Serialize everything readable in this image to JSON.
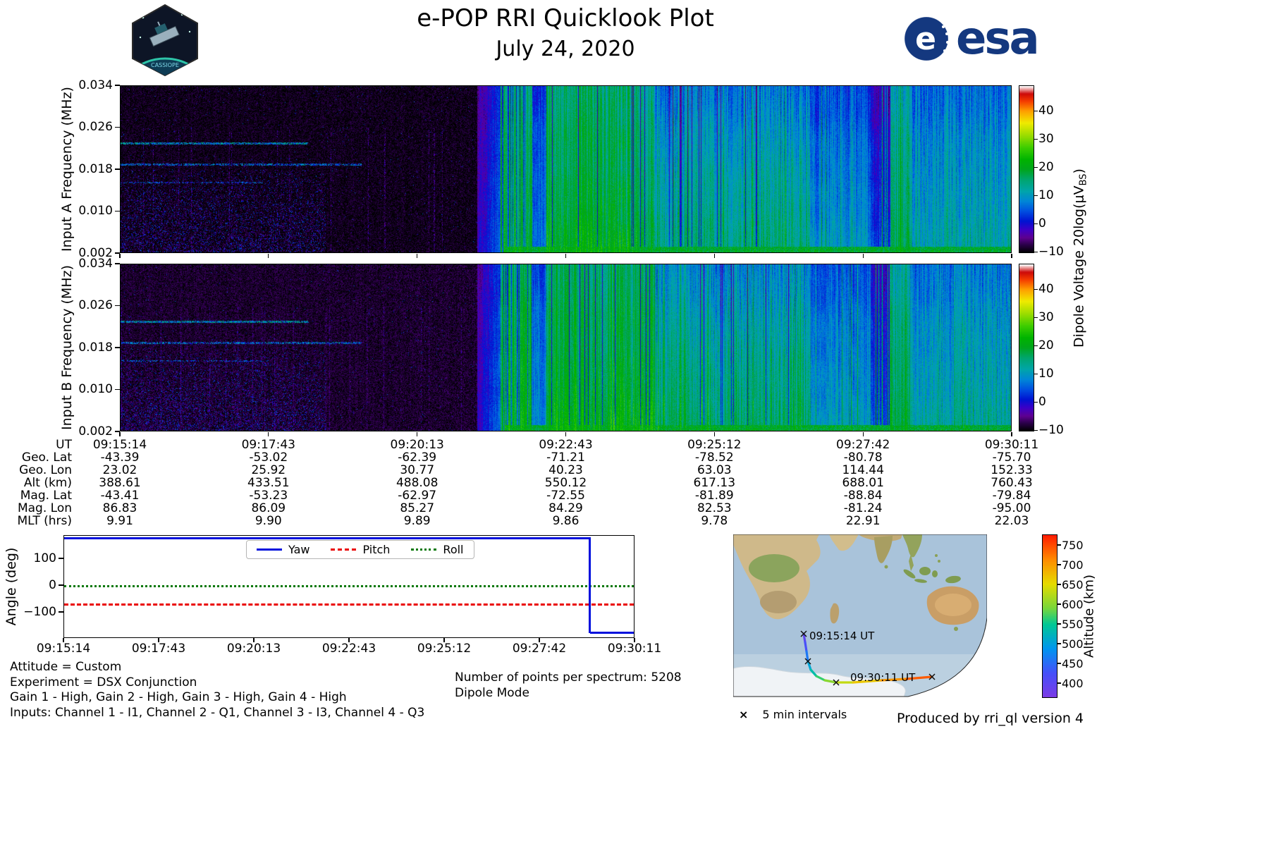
{
  "header": {
    "title": "e-POP RRI Quicklook Plot",
    "date": "July 24, 2020",
    "esa_wordmark": "esa",
    "mission_patch": "CASSIOPE"
  },
  "colors": {
    "yaw": "#0010dd",
    "pitch": "#ea0000",
    "roll": "#067806",
    "ocean": "#a9c3da",
    "esa_blue": "#14387f"
  },
  "spectrograms": {
    "panel_a_ylabel": "Input A Frequency (MHz)",
    "panel_b_ylabel": "Input B Frequency (MHz)",
    "ytick_labels": [
      "0.034",
      "0.026",
      "0.018",
      "0.010",
      "0.002"
    ],
    "colorbar_ticks": [
      "40",
      "30",
      "20",
      "10",
      "0",
      "−10"
    ],
    "colorbar_label_prefix": "Dipole Voltage 20log(μV",
    "colorbar_label_sub": "BS",
    "colorbar_label_suffix": ")"
  },
  "ephemeris": {
    "row_labels": [
      "UT",
      "Geo. Lat",
      "Geo. Lon",
      "Alt (km)",
      "Mag. Lat",
      "Mag. Lon",
      "MLT (hrs)"
    ],
    "columns": [
      [
        "09:15:14",
        "-43.39",
        "23.02",
        "388.61",
        "-43.41",
        "86.83",
        "9.91"
      ],
      [
        "09:17:43",
        "-53.02",
        "25.92",
        "433.51",
        "-53.23",
        "86.09",
        "9.90"
      ],
      [
        "09:20:13",
        "-62.39",
        "30.77",
        "488.08",
        "-62.97",
        "85.27",
        "9.89"
      ],
      [
        "09:22:43",
        "-71.21",
        "40.23",
        "550.12",
        "-72.55",
        "84.29",
        "9.86"
      ],
      [
        "09:25:12",
        "-78.52",
        "63.03",
        "617.13",
        "-81.89",
        "82.53",
        "9.78"
      ],
      [
        "09:27:42",
        "-80.78",
        "114.44",
        "688.01",
        "-88.84",
        "-81.24",
        "22.91"
      ],
      [
        "09:30:11",
        "-75.70",
        "152.33",
        "760.43",
        "-79.84",
        "-95.00",
        "22.03"
      ]
    ]
  },
  "attitude": {
    "ylabel": "Angle (deg)",
    "ytick_labels": [
      "100",
      "0",
      "−100"
    ],
    "xtick_labels": [
      "09:15:14",
      "09:17:43",
      "09:20:13",
      "09:22:43",
      "09:25:12",
      "09:27:42",
      "09:30:11"
    ],
    "legend": [
      {
        "label": "Yaw",
        "color": "#0010dd",
        "style": "solid"
      },
      {
        "label": "Pitch",
        "color": "#ea0000",
        "style": "dashed"
      },
      {
        "label": "Roll",
        "color": "#067806",
        "style": "dotted"
      }
    ]
  },
  "info": {
    "left_lines": [
      "Attitude = Custom",
      "Experiment = DSX Conjunction",
      "Gain 1 - High, Gain 2 - High, Gain 3 - High, Gain 4 - High",
      "Inputs: Channel 1 - I1, Channel 2 - Q1, Channel 3 - I3, Channel 4 - Q3"
    ],
    "center_lines": [
      "Number of points per spectrum: 5208",
      "Dipole Mode"
    ]
  },
  "map": {
    "start_label": "09:15:14 UT",
    "end_label": "09:30:11 UT",
    "interval_marker": "×",
    "interval_label": "5 min intervals",
    "colorbar_label": "Altitude (km)",
    "colorbar_ticks": [
      "750",
      "700",
      "650",
      "600",
      "550",
      "500",
      "450",
      "400"
    ]
  },
  "footer": {
    "credit": "Produced by rri_ql version 4"
  },
  "chart_data": [
    {
      "type": "heatmap",
      "title": "RRI Input A spectrogram",
      "ylabel": "Input A Frequency (MHz)",
      "ylim": [
        0.002,
        0.034
      ],
      "yticks": [
        0.034,
        0.026,
        0.018,
        0.01,
        0.002
      ],
      "x_ticks": [
        "09:15:14",
        "09:17:43",
        "09:20:13",
        "09:22:43",
        "09:25:12",
        "09:27:42",
        "09:30:11"
      ],
      "color_scale": {
        "label": "Dipole Voltage 20log(μVBS)",
        "min": -10,
        "max": 45,
        "colormap": "nipy_spectral"
      },
      "summary": "Near-noise floor (≈ −10) before ~09:21:30 except narrowband lines near 0.023, 0.019 and 0.016 MHz before ~09:17 and low-frequency speckle; strong broadband emission 10–30 from ~09:21:45 to ~09:24:00; mixed 5–20 blue/green striations until 09:30:11 with a dark band near 09:28 and enhanced signal at the lowest frequencies"
    },
    {
      "type": "heatmap",
      "title": "RRI Input B spectrogram",
      "ylabel": "Input B Frequency (MHz)",
      "ylim": [
        0.002,
        0.034
      ],
      "yticks": [
        0.034,
        0.026,
        0.018,
        0.01,
        0.002
      ],
      "x_ticks": [
        "09:15:14",
        "09:17:43",
        "09:20:13",
        "09:22:43",
        "09:25:12",
        "09:27:42",
        "09:30:11"
      ],
      "color_scale": {
        "label": "Dipole Voltage 20log(μVBS)",
        "min": -10,
        "max": 45,
        "colormap": "nipy_spectral"
      },
      "summary": "Same structure as Input A with slightly stronger green emission in the 09:24–09:27 interval"
    },
    {
      "type": "table",
      "title": "Ephemeris",
      "row_labels": [
        "UT",
        "Geo. Lat",
        "Geo. Lon",
        "Alt (km)",
        "Mag. Lat",
        "Mag. Lon",
        "MLT (hrs)"
      ],
      "columns": [
        [
          "09:15:14",
          "-43.39",
          "23.02",
          "388.61",
          "-43.41",
          "86.83",
          "9.91"
        ],
        [
          "09:17:43",
          "-53.02",
          "25.92",
          "433.51",
          "-53.23",
          "86.09",
          "9.90"
        ],
        [
          "09:20:13",
          "-62.39",
          "30.77",
          "488.08",
          "-62.97",
          "85.27",
          "9.89"
        ],
        [
          "09:22:43",
          "-71.21",
          "40.23",
          "550.12",
          "-72.55",
          "84.29",
          "9.86"
        ],
        [
          "09:25:12",
          "-78.52",
          "63.03",
          "617.13",
          "-81.89",
          "82.53",
          "9.78"
        ],
        [
          "09:27:42",
          "-80.78",
          "114.44",
          "688.01",
          "-88.84",
          "-81.24",
          "22.91"
        ],
        [
          "09:30:11",
          "-75.70",
          "152.33",
          "760.43",
          "-79.84",
          "-95.00",
          "22.03"
        ]
      ]
    },
    {
      "type": "line",
      "title": "Spacecraft attitude angles",
      "ylabel": "Angle (deg)",
      "ylim": [
        -197,
        187
      ],
      "x": [
        "09:15:14",
        "09:17:43",
        "09:20:13",
        "09:22:43",
        "09:25:12",
        "09:27:42",
        "09:30:11"
      ],
      "series": [
        {
          "name": "Yaw",
          "color": "#0010dd",
          "values": [
            178,
            178,
            178,
            178,
            178,
            178,
            -178
          ],
          "note": "wraps from +178 to −178 at ≈09:29"
        },
        {
          "name": "Pitch",
          "color": "#ea0000",
          "values": [
            -70,
            -70,
            -70,
            -70,
            -70,
            -70,
            -70
          ]
        },
        {
          "name": "Roll",
          "color": "#067806",
          "values": [
            0,
            0,
            0,
            0,
            0,
            0,
            0
          ]
        }
      ],
      "legend_position": "upper center",
      "grid": false
    },
    {
      "type": "scatter",
      "title": "Ground track colored by altitude",
      "points": [
        {
          "ut": "09:15:14",
          "lat": -43.39,
          "lon": 23.02,
          "alt_km": 388.61
        },
        {
          "ut": "09:17:43",
          "lat": -53.02,
          "lon": 25.92,
          "alt_km": 433.51
        },
        {
          "ut": "09:20:13",
          "lat": -62.39,
          "lon": 30.77,
          "alt_km": 488.08
        },
        {
          "ut": "09:22:43",
          "lat": -71.21,
          "lon": 40.23,
          "alt_km": 550.12
        },
        {
          "ut": "09:25:12",
          "lat": -78.52,
          "lon": 63.03,
          "alt_km": 617.13
        },
        {
          "ut": "09:27:42",
          "lat": -80.78,
          "lon": 114.44,
          "alt_km": 688.01
        },
        {
          "ut": "09:30:11",
          "lat": -75.7,
          "lon": 152.33,
          "alt_km": 760.43
        }
      ],
      "colorbar": {
        "label": "Altitude (km)",
        "min": 400,
        "max": 750,
        "colormap": "rainbow"
      },
      "markers": "x every 5 min"
    }
  ]
}
